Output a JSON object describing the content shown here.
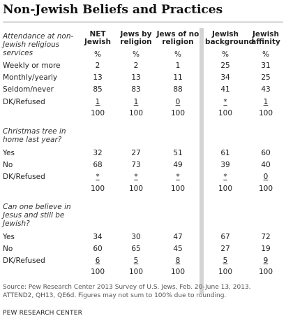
{
  "title": "Non-Jewish Beliefs and Practices",
  "columns": [
    "NET Jewish",
    "Jews by religion",
    "Jews of no religion",
    "Jewish background",
    "Jewish affinity"
  ],
  "sections": [
    {
      "question": "Attendance at non-Jewish religious services",
      "header_cells": [
        "%",
        "%",
        "%",
        "%",
        "%"
      ],
      "rows": [
        {
          "label": "Weekly or more",
          "values": [
            "2",
            "2",
            "1",
            "25",
            "31"
          ]
        },
        {
          "label": "Monthly/yearly",
          "values": [
            "13",
            "13",
            "11",
            "34",
            "25"
          ]
        },
        {
          "label": "Seldom/never",
          "values": [
            "85",
            "83",
            "88",
            "41",
            "43"
          ]
        },
        {
          "label": "DK/Refused",
          "values": [
            "1",
            "1",
            "0",
            "*",
            "1"
          ]
        }
      ],
      "totals": [
        "100",
        "100",
        "100",
        "100",
        "100"
      ]
    },
    {
      "question": "Christmas tree in home last year?",
      "rows": [
        {
          "label": "Yes",
          "values": [
            "32",
            "27",
            "51",
            "61",
            "60"
          ]
        },
        {
          "label": "No",
          "values": [
            "68",
            "73",
            "49",
            "39",
            "40"
          ]
        },
        {
          "label": "DK/Refused",
          "values": [
            "*",
            "*",
            "*",
            "*",
            "0"
          ]
        }
      ],
      "totals": [
        "100",
        "100",
        "100",
        "100",
        "100"
      ]
    },
    {
      "question": "Can one believe in Jesus and still be Jewish?",
      "rows": [
        {
          "label": "Yes",
          "values": [
            "34",
            "30",
            "47",
            "67",
            "72"
          ]
        },
        {
          "label": "No",
          "values": [
            "60",
            "65",
            "45",
            "27",
            "19"
          ]
        },
        {
          "label": "DK/Refused",
          "values": [
            "6",
            "5",
            "8",
            "5",
            "9"
          ]
        }
      ],
      "totals": [
        "100",
        "100",
        "100",
        "100",
        "100"
      ]
    }
  ],
  "source": "Source: Pew Research Center 2013 Survey of U.S. Jews, Feb. 20-June 13, 2013. ATTEND2, QH13, QE6d. Figures may not sum to 100% due to rounding.",
  "brand": "PEW RESEARCH CENTER"
}
